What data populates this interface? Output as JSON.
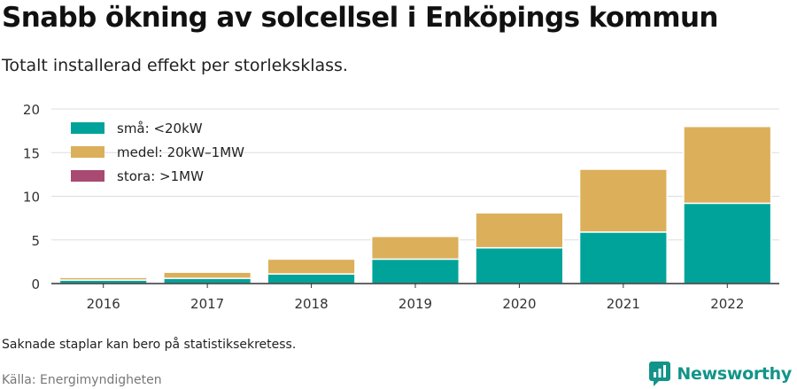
{
  "title": "Snabb ökning av solcellsel i Enköpings kommun",
  "subtitle": "Totalt installerad effekt per storleksklass.",
  "footnote": "Saknade staplar kan bero på statistiksekretess.",
  "source": "Källa: Energimyndigheten",
  "brand": {
    "name": "Newsworthy",
    "icon": "newsworthy-logo-icon",
    "color": "#12948a"
  },
  "colors": {
    "small": "#00a39a",
    "medium": "#dcaf5a",
    "large": "#a84a72",
    "grid": "#dddddd",
    "axis": "#333333"
  },
  "chart_data": {
    "type": "bar",
    "stacked": true,
    "categories": [
      "2016",
      "2017",
      "2018",
      "2019",
      "2020",
      "2021",
      "2022"
    ],
    "series": [
      {
        "key": "small",
        "name": "små: <20kW",
        "values": [
          0.4,
          0.6,
          1.1,
          2.8,
          4.1,
          5.9,
          9.2
        ]
      },
      {
        "key": "medium",
        "name": "medel: 20kW–1MW",
        "values": [
          0.3,
          0.7,
          1.7,
          2.6,
          4.0,
          7.2,
          8.8
        ]
      },
      {
        "key": "large",
        "name": "stora: >1MW",
        "values": [
          0,
          0,
          0,
          0,
          0,
          0,
          0
        ]
      }
    ],
    "yticks": [
      0,
      5,
      10,
      15,
      20
    ],
    "ylim": [
      0,
      20
    ],
    "xlabel": "",
    "ylabel": "",
    "legend": "top-left",
    "grid": true
  }
}
